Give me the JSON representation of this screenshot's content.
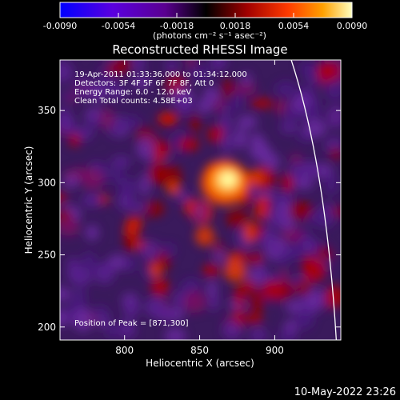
{
  "chart_data": {
    "type": "heatmap",
    "title": "Reconstructed RHESSI Image",
    "xlabel": "Heliocentric X (arcsec)",
    "ylabel": "Heliocentric Y (arcsec)",
    "x_ticks": [
      800,
      850,
      900
    ],
    "y_ticks": [
      200,
      250,
      300,
      350
    ],
    "xlim": [
      757,
      944
    ],
    "ylim": [
      191,
      385
    ],
    "colorbar": {
      "ticks": [
        "-0.0090",
        "-0.0054",
        "-0.0018",
        "0.0018",
        "0.0054",
        "0.0090"
      ],
      "range": [
        -0.009,
        0.009
      ],
      "unit_label": "(photons cm⁻² s⁻¹ asec⁻²)",
      "colors": [
        "#0000ff",
        "#6f00d0",
        "#3a0060",
        "#000000",
        "#900000",
        "#ff3300",
        "#ff9900",
        "#ffff80"
      ]
    },
    "annotations": [
      "19-Apr-2011 01:33:36.000 to 01:34:12.000",
      "Detectors: 3F 4F 5F 6F 7F 8F, Att 0",
      "Energy Range: 6.0 - 12.0 keV",
      "Clean    Total counts: 4.58E+03"
    ],
    "peak_label": "Position of Peak = [871,300]",
    "peak": [
      871,
      300
    ],
    "limb_arc": {
      "points": [
        [
          911,
          385
        ],
        [
          930,
          300
        ],
        [
          941,
          191
        ]
      ],
      "color": "#ffffff"
    }
  },
  "footer_timestamp": "10-May-2022 23:26"
}
